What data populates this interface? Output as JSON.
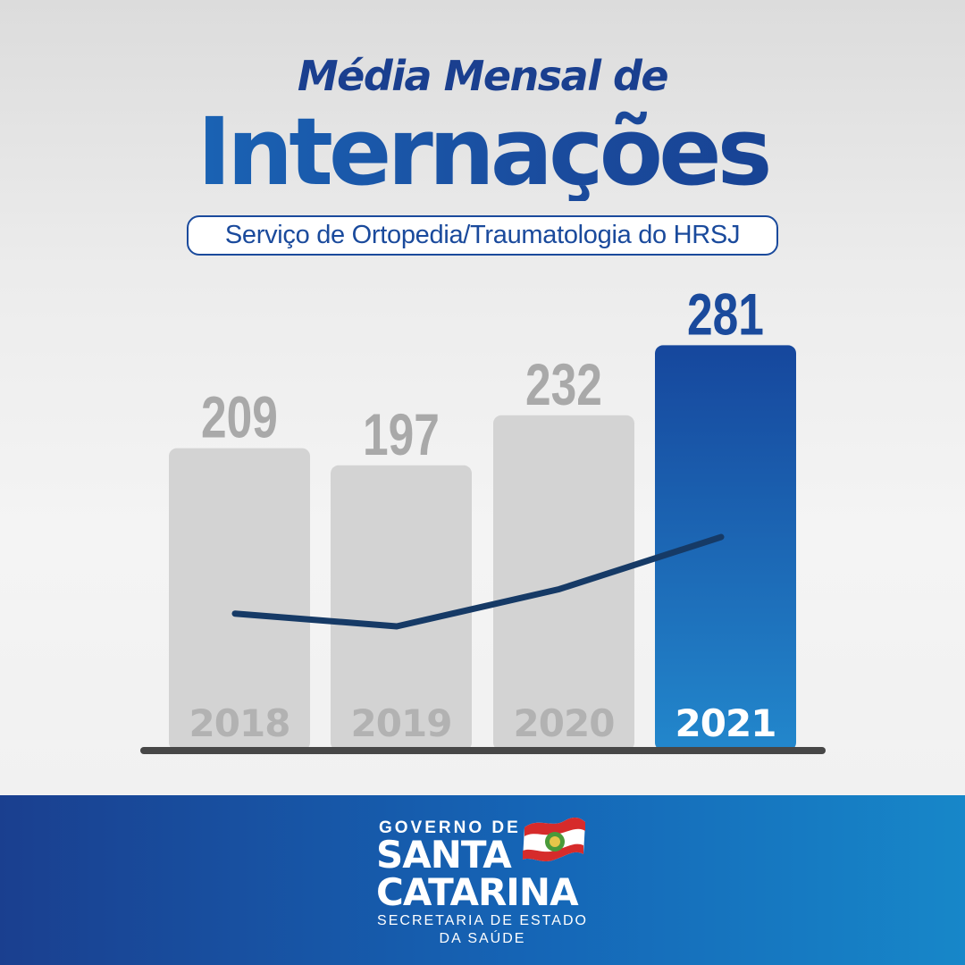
{
  "header": {
    "title_line1": "Média Mensal de",
    "title_line2": "Internações",
    "subtitle": "Serviço de Ortopedia/Traumatologia do HRSJ"
  },
  "chart_data": {
    "type": "bar",
    "title": "Média Mensal de Internações",
    "subtitle": "Serviço de Ortopedia/Traumatologia do HRSJ",
    "categories": [
      "2018",
      "2019",
      "2020",
      "2021"
    ],
    "values": [
      209,
      197,
      232,
      281
    ],
    "trend_line": true,
    "highlight_category": "2021",
    "colors": {
      "bar": "#d3d3d3",
      "bar_highlight": "#1a63b4",
      "value_label": "#a9a9a9",
      "value_label_highlight": "#1a4a9c",
      "category_label": "#b2b2b2",
      "category_label_highlight": "#ffffff",
      "trend_line": "#163a66",
      "baseline": "#474747"
    }
  },
  "footer": {
    "logo_line1": "GOVERNO DE",
    "logo_line2": "SANTA",
    "logo_line3": "CATARINA",
    "logo_line4": "SECRETARIA DE ESTADO",
    "logo_line5": "DA SAÚDE",
    "flag_icon": "santa-catarina-flag-icon"
  }
}
